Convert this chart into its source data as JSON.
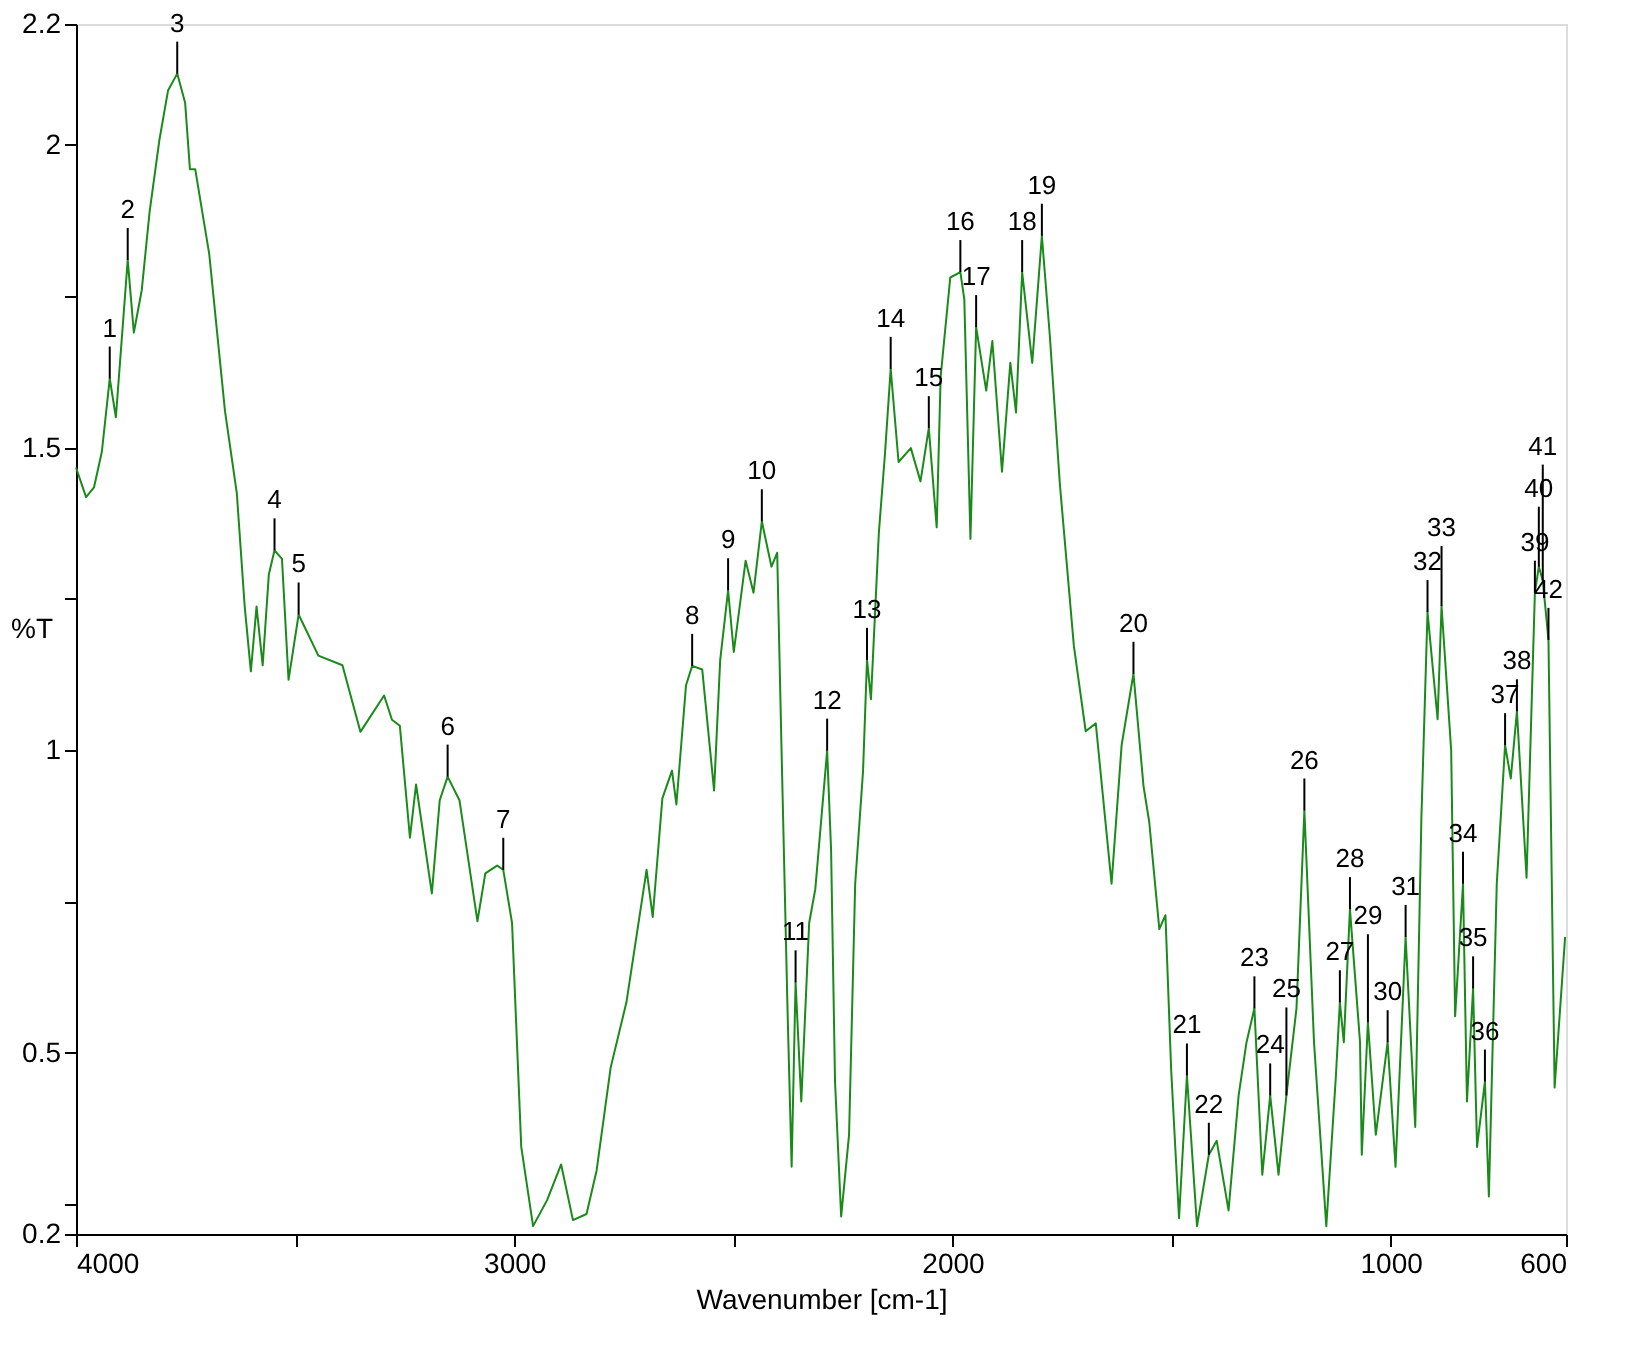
{
  "chart_data": {
    "type": "line",
    "xlabel": "Wavenumber [cm-1]",
    "ylabel": "%T",
    "xlim": [
      4000,
      600
    ],
    "ylim": [
      0.2,
      2.2
    ],
    "xticks": [
      4000,
      {
        "value": 3500,
        "label": null
      },
      3000,
      {
        "value": 2500,
        "label": null
      },
      2000,
      {
        "value": 1500,
        "label": null
      },
      1000,
      600
    ],
    "yticks": [
      0.2,
      {
        "value": 0.25,
        "label": null
      },
      0.5,
      {
        "value": 0.75,
        "label": null
      },
      1,
      {
        "value": 1.25,
        "label": null
      },
      1.5,
      {
        "value": 1.75,
        "label": null
      },
      2,
      2.2
    ],
    "grid": false,
    "marker": "none",
    "line_style": "solid",
    "series": [
      {
        "color": "#1a8a1a",
        "x": [
          4000,
          3977,
          3959,
          3941,
          3923,
          3909,
          3882,
          3868,
          3850,
          3832,
          3810,
          3790,
          3769,
          3751,
          3740,
          3728,
          3696,
          3660,
          3633,
          3615,
          3601,
          3588,
          3574,
          3560,
          3547,
          3530,
          3515,
          3492,
          3447,
          3392,
          3351,
          3297,
          3279,
          3261,
          3238,
          3224,
          3188,
          3170,
          3152,
          3125,
          3084,
          3066,
          3039,
          3025,
          3005,
          2984,
          2957,
          2925,
          2893,
          2866,
          2835,
          2812,
          2780,
          2744,
          2698,
          2684,
          2662,
          2640,
          2630,
          2608,
          2594,
          2571,
          2544,
          2530,
          2512,
          2499,
          2472,
          2454,
          2435,
          2413,
          2400,
          2390,
          2376,
          2367,
          2358,
          2345,
          2327,
          2313,
          2286,
          2277,
          2268,
          2254,
          2236,
          2222,
          2204,
          2195,
          2186,
          2168,
          2154,
          2141,
          2123,
          2095,
          2073,
          2054,
          2036,
          2027,
          2005,
          1982,
          1973,
          1959,
          1946,
          1923,
          1909,
          1887,
          1868,
          1855,
          1841,
          1818,
          1796,
          1778,
          1755,
          1723,
          1696,
          1673,
          1637,
          1614,
          1587,
          1564,
          1551,
          1528,
          1514,
          1501,
          1483,
          1465,
          1442,
          1415,
          1397,
          1370,
          1347,
          1329,
          1311,
          1293,
          1275,
          1256,
          1238,
          1215,
          1197,
          1175,
          1147,
          1125,
          1116,
          1107,
          1093,
          1070,
          1066,
          1052,
          1034,
          1007,
          989,
          966,
          944,
          930,
          916,
          893,
          884,
          862,
          853,
          835,
          826,
          812,
          803,
          785,
          776,
          758,
          739,
          726,
          712,
          690,
          671,
          662,
          653,
          640,
          626,
          602
        ],
        "values": [
          1.467,
          1.418,
          1.434,
          1.493,
          1.614,
          1.55,
          1.81,
          1.69,
          1.76,
          1.89,
          2.007,
          2.09,
          2.118,
          2.07,
          1.96,
          1.96,
          1.82,
          1.56,
          1.424,
          1.237,
          1.13,
          1.237,
          1.14,
          1.29,
          1.33,
          1.316,
          1.116,
          1.224,
          1.156,
          1.14,
          1.03,
          1.09,
          1.05,
          1.04,
          0.855,
          0.943,
          0.763,
          0.917,
          0.956,
          0.917,
          0.717,
          0.796,
          0.809,
          0.802,
          0.714,
          0.344,
          0.213,
          0.256,
          0.315,
          0.223,
          0.233,
          0.305,
          0.475,
          0.583,
          0.802,
          0.724,
          0.92,
          0.966,
          0.91,
          1.107,
          1.139,
          1.133,
          0.933,
          1.149,
          1.264,
          1.162,
          1.313,
          1.26,
          1.378,
          1.303,
          1.326,
          0.999,
          0.56,
          0.311,
          0.616,
          0.419,
          0.714,
          0.77,
          0.999,
          0.835,
          0.452,
          0.229,
          0.364,
          0.779,
          0.966,
          1.149,
          1.084,
          1.359,
          1.49,
          1.63,
          1.476,
          1.499,
          1.444,
          1.532,
          1.368,
          1.617,
          1.781,
          1.79,
          1.745,
          1.349,
          1.699,
          1.594,
          1.676,
          1.46,
          1.64,
          1.558,
          1.79,
          1.64,
          1.85,
          1.686,
          1.44,
          1.172,
          1.031,
          1.044,
          0.779,
          1.008,
          1.126,
          0.94,
          0.881,
          0.704,
          0.727,
          0.472,
          0.226,
          0.462,
          0.213,
          0.331,
          0.354,
          0.239,
          0.429,
          0.517,
          0.573,
          0.298,
          0.429,
          0.298,
          0.429,
          0.573,
          0.9,
          0.517,
          0.213,
          0.462,
          0.583,
          0.517,
          0.737,
          0.517,
          0.331,
          0.55,
          0.364,
          0.517,
          0.311,
          0.691,
          0.377,
          0.887,
          1.228,
          1.051,
          1.238,
          0.999,
          0.56,
          0.779,
          0.419,
          0.606,
          0.344,
          0.452,
          0.262,
          0.779,
          1.008,
          0.953,
          1.064,
          0.789,
          1.26,
          1.303,
          1.28,
          1.182,
          0.442,
          0.691
        ]
      }
    ],
    "annotations": [
      {
        "text": "1",
        "x": 3923,
        "y": 1.614
      },
      {
        "text": "2",
        "x": 3882,
        "y": 1.81
      },
      {
        "text": "3",
        "x": 3769,
        "y": 2.118
      },
      {
        "text": "4",
        "x": 3547,
        "y": 1.33
      },
      {
        "text": "5",
        "x": 3492,
        "y": 1.224
      },
      {
        "text": "6",
        "x": 3152,
        "y": 0.956
      },
      {
        "text": "7",
        "x": 3025,
        "y": 0.802
      },
      {
        "text": "8",
        "x": 2594,
        "y": 1.139
      },
      {
        "text": "9",
        "x": 2512,
        "y": 1.264
      },
      {
        "text": "10",
        "x": 2435,
        "y": 1.378
      },
      {
        "text": "11",
        "x": 2358,
        "y": 0.616
      },
      {
        "text": "12",
        "x": 2286,
        "y": 0.999
      },
      {
        "text": "13",
        "x": 2195,
        "y": 1.149
      },
      {
        "text": "14",
        "x": 2141,
        "y": 1.63
      },
      {
        "text": "15",
        "x": 2054,
        "y": 1.532
      },
      {
        "text": "16",
        "x": 1982,
        "y": 1.79
      },
      {
        "text": "17",
        "x": 1946,
        "y": 1.699
      },
      {
        "text": "18",
        "x": 1841,
        "y": 1.79
      },
      {
        "text": "19",
        "x": 1796,
        "y": 1.85
      },
      {
        "text": "20",
        "x": 1587,
        "y": 1.126
      },
      {
        "text": "21",
        "x": 1465,
        "y": 0.462
      },
      {
        "text": "22",
        "x": 1415,
        "y": 0.331
      },
      {
        "text": "23",
        "x": 1311,
        "y": 0.573
      },
      {
        "text": "24",
        "x": 1275,
        "y": 0.429
      },
      {
        "text": "25",
        "x": 1238,
        "y": 0.429
      },
      {
        "text": "26",
        "x": 1197,
        "y": 0.9
      },
      {
        "text": "27",
        "x": 1116,
        "y": 0.583
      },
      {
        "text": "28",
        "x": 1093,
        "y": 0.737
      },
      {
        "text": "29",
        "x": 1052,
        "y": 0.55
      },
      {
        "text": "30",
        "x": 1007,
        "y": 0.517
      },
      {
        "text": "31",
        "x": 966,
        "y": 0.691
      },
      {
        "text": "32",
        "x": 916,
        "y": 1.228
      },
      {
        "text": "33",
        "x": 884,
        "y": 1.238
      },
      {
        "text": "34",
        "x": 835,
        "y": 0.779
      },
      {
        "text": "35",
        "x": 812,
        "y": 0.606
      },
      {
        "text": "36",
        "x": 785,
        "y": 0.452
      },
      {
        "text": "37",
        "x": 739,
        "y": 1.008
      },
      {
        "text": "38",
        "x": 712,
        "y": 1.064
      },
      {
        "text": "39",
        "x": 671,
        "y": 1.26
      },
      {
        "text": "40",
        "x": 662,
        "y": 1.303
      },
      {
        "text": "41",
        "x": 653,
        "y": 1.28
      },
      {
        "text": "42",
        "x": 640,
        "y": 1.182
      }
    ]
  }
}
